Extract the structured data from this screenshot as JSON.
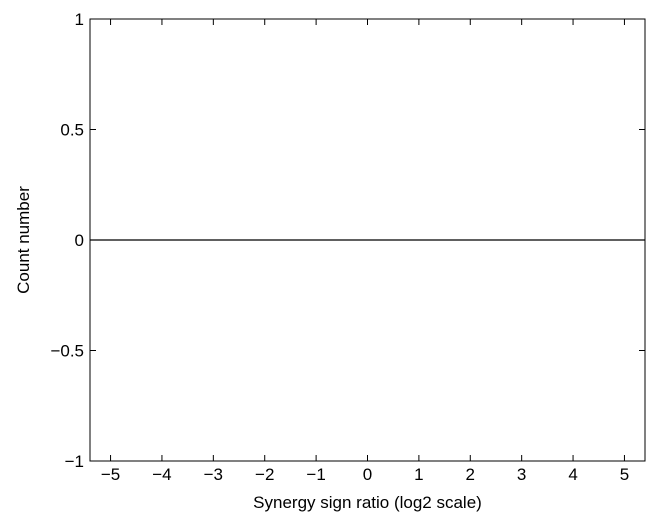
{
  "chart_data": {
    "type": "line",
    "title": "",
    "xlabel": "Synergy sign ratio (log2 scale)",
    "ylabel": "Count number",
    "xlim": [
      -5.4,
      5.4
    ],
    "ylim": [
      -1,
      1
    ],
    "xticks": [
      -5,
      -4,
      -3,
      -2,
      -1,
      0,
      1,
      2,
      3,
      4,
      5
    ],
    "yticks": [
      -1,
      -0.5,
      0,
      0.5,
      1
    ],
    "xtick_labels": [
      "−5",
      "−4",
      "−3",
      "−2",
      "−1",
      "0",
      "1",
      "2",
      "3",
      "4",
      "5"
    ],
    "ytick_labels": [
      "−1",
      "−0.5",
      "0",
      "0.5",
      "1"
    ],
    "grid": false,
    "series": [
      {
        "x": [
          -5.4,
          5.4
        ],
        "y": [
          0,
          0
        ],
        "color": "#000000"
      }
    ]
  }
}
